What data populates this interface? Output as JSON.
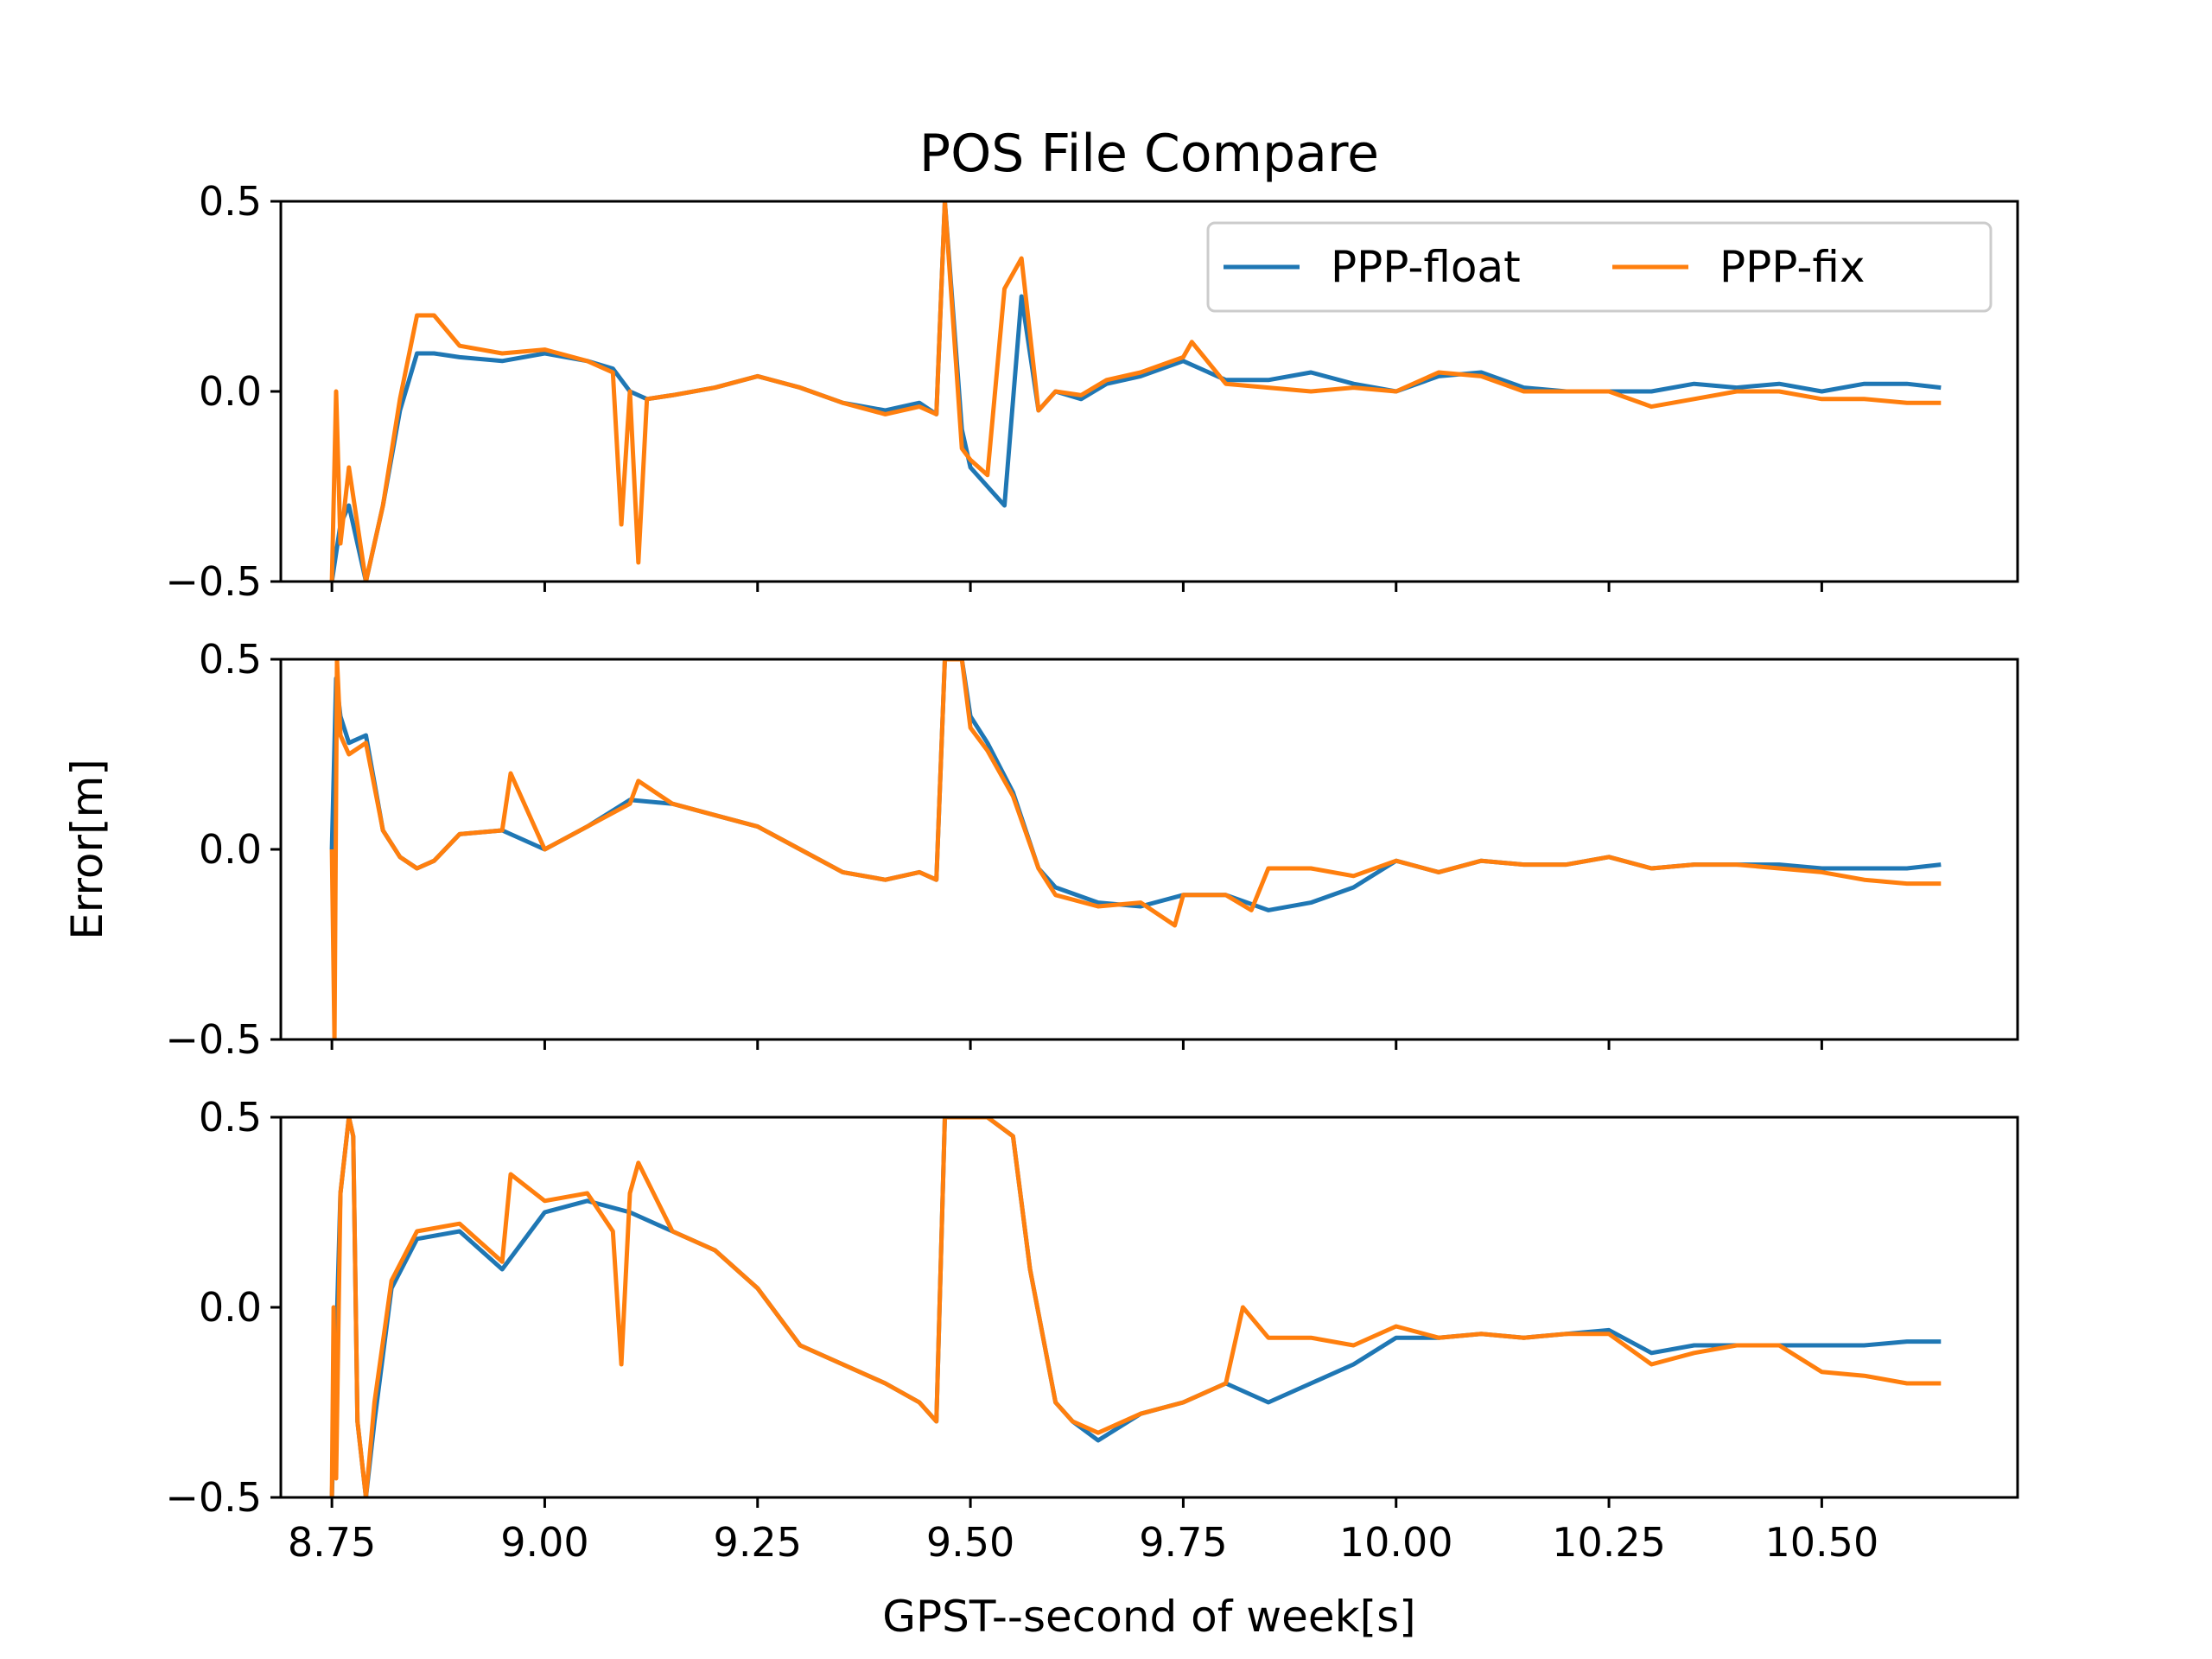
{
  "chart_data": {
    "type": "line",
    "title": "POS File Compare",
    "xlabel": "GPST--second of week[s]",
    "ylabel": "Error[m]",
    "xlim": [
      8.69,
      10.73
    ],
    "ylim": [
      -0.5,
      0.5
    ],
    "x_ticks": [
      "8.75",
      "9.00",
      "9.25",
      "9.50",
      "9.75",
      "10.00",
      "10.25",
      "10.50"
    ],
    "y_ticks": [
      "−0.5",
      "0.0",
      "0.5"
    ],
    "legend": {
      "placement": "top-right",
      "subplot": 0,
      "entries": [
        "PPP-float",
        "PPP-fix"
      ]
    },
    "colors": {
      "PPP-float": "#1f77b4",
      "PPP-fix": "#ff7f0e"
    },
    "subplots": [
      {
        "series": [
          {
            "name": "PPP-float",
            "x": [
              8.75,
              8.76,
              8.77,
              8.79,
              8.81,
              8.83,
              8.85,
              8.87,
              8.9,
              8.95,
              9.0,
              9.05,
              9.08,
              9.1,
              9.12,
              9.15,
              9.2,
              9.25,
              9.3,
              9.35,
              9.4,
              9.44,
              9.46,
              9.47,
              9.49,
              9.5,
              9.52,
              9.54,
              9.56,
              9.58,
              9.6,
              9.63,
              9.66,
              9.7,
              9.75,
              9.8,
              9.85,
              9.9,
              9.95,
              10.0,
              10.05,
              10.1,
              10.15,
              10.2,
              10.25,
              10.3,
              10.35,
              10.4,
              10.45,
              10.5,
              10.55,
              10.6,
              10.64
            ],
            "y": [
              -0.5,
              -0.35,
              -0.3,
              -0.5,
              -0.3,
              -0.05,
              0.1,
              0.1,
              0.09,
              0.08,
              0.1,
              0.08,
              0.06,
              0.0,
              -0.02,
              -0.01,
              0.01,
              0.04,
              0.01,
              -0.03,
              -0.05,
              -0.03,
              -0.06,
              0.5,
              -0.1,
              -0.2,
              -0.25,
              -0.3,
              0.25,
              -0.05,
              0.0,
              -0.02,
              0.02,
              0.04,
              0.08,
              0.03,
              0.03,
              0.05,
              0.02,
              0.0,
              0.04,
              0.05,
              0.01,
              0.0,
              0.0,
              0.0,
              0.02,
              0.01,
              0.02,
              0.0,
              0.02,
              0.02,
              0.01
            ]
          },
          {
            "name": "PPP-fix",
            "x": [
              8.75,
              8.755,
              8.76,
              8.77,
              8.79,
              8.81,
              8.83,
              8.85,
              8.87,
              8.9,
              8.95,
              9.0,
              9.05,
              9.08,
              9.09,
              9.1,
              9.11,
              9.12,
              9.15,
              9.2,
              9.25,
              9.3,
              9.35,
              9.4,
              9.44,
              9.46,
              9.47,
              9.49,
              9.5,
              9.52,
              9.54,
              9.56,
              9.58,
              9.6,
              9.63,
              9.66,
              9.7,
              9.75,
              9.76,
              9.8,
              9.85,
              9.9,
              9.95,
              10.0,
              10.05,
              10.1,
              10.15,
              10.2,
              10.25,
              10.3,
              10.35,
              10.4,
              10.45,
              10.5,
              10.55,
              10.6,
              10.64
            ],
            "y": [
              -0.5,
              0.0,
              -0.4,
              -0.2,
              -0.5,
              -0.3,
              -0.02,
              0.2,
              0.2,
              0.12,
              0.1,
              0.11,
              0.08,
              0.05,
              -0.35,
              0.0,
              -0.45,
              -0.02,
              -0.01,
              0.01,
              0.04,
              0.01,
              -0.03,
              -0.06,
              -0.04,
              -0.06,
              0.5,
              -0.15,
              -0.18,
              -0.22,
              0.27,
              0.35,
              -0.05,
              0.0,
              -0.01,
              0.03,
              0.05,
              0.09,
              0.13,
              0.02,
              0.01,
              0.0,
              0.01,
              0.0,
              0.05,
              0.04,
              0.0,
              0.0,
              0.0,
              -0.04,
              -0.02,
              0.0,
              0.0,
              -0.02,
              -0.02,
              -0.03,
              -0.03
            ]
          }
        ]
      },
      {
        "series": [
          {
            "name": "PPP-float",
            "x": [
              8.75,
              8.755,
              8.76,
              8.77,
              8.79,
              8.81,
              8.83,
              8.85,
              8.87,
              8.9,
              8.95,
              9.0,
              9.05,
              9.1,
              9.15,
              9.2,
              9.25,
              9.3,
              9.35,
              9.4,
              9.44,
              9.46,
              9.47,
              9.49,
              9.5,
              9.52,
              9.55,
              9.58,
              9.6,
              9.65,
              9.7,
              9.75,
              9.8,
              9.85,
              9.9,
              9.95,
              10.0,
              10.05,
              10.1,
              10.15,
              10.2,
              10.25,
              10.3,
              10.35,
              10.4,
              10.45,
              10.5,
              10.55,
              10.6,
              10.64
            ],
            "y": [
              0.0,
              0.45,
              0.35,
              0.28,
              0.3,
              0.05,
              -0.02,
              -0.05,
              -0.03,
              0.04,
              0.05,
              0.0,
              0.06,
              0.13,
              0.12,
              0.09,
              0.06,
              0.0,
              -0.06,
              -0.08,
              -0.06,
              -0.08,
              0.5,
              0.5,
              0.35,
              0.28,
              0.15,
              -0.05,
              -0.1,
              -0.14,
              -0.15,
              -0.12,
              -0.12,
              -0.16,
              -0.14,
              -0.1,
              -0.03,
              -0.06,
              -0.03,
              -0.04,
              -0.04,
              -0.02,
              -0.05,
              -0.04,
              -0.04,
              -0.04,
              -0.05,
              -0.05,
              -0.05,
              -0.04
            ]
          },
          {
            "name": "PPP-fix",
            "x": [
              8.75,
              8.753,
              8.756,
              8.76,
              8.77,
              8.79,
              8.81,
              8.83,
              8.85,
              8.87,
              8.9,
              8.95,
              8.96,
              9.0,
              9.05,
              9.1,
              9.11,
              9.15,
              9.2,
              9.25,
              9.3,
              9.35,
              9.4,
              9.44,
              9.46,
              9.47,
              9.49,
              9.5,
              9.52,
              9.55,
              9.58,
              9.6,
              9.65,
              9.7,
              9.74,
              9.75,
              9.8,
              9.83,
              9.85,
              9.9,
              9.95,
              10.0,
              10.05,
              10.1,
              10.15,
              10.2,
              10.25,
              10.3,
              10.35,
              10.4,
              10.45,
              10.5,
              10.55,
              10.6,
              10.64
            ],
            "y": [
              0.0,
              -0.5,
              0.5,
              0.3,
              0.25,
              0.28,
              0.05,
              -0.02,
              -0.05,
              -0.03,
              0.04,
              0.05,
              0.2,
              0.0,
              0.06,
              0.12,
              0.18,
              0.12,
              0.09,
              0.06,
              0.0,
              -0.06,
              -0.08,
              -0.06,
              -0.08,
              0.5,
              0.5,
              0.32,
              0.26,
              0.14,
              -0.05,
              -0.12,
              -0.15,
              -0.14,
              -0.2,
              -0.12,
              -0.12,
              -0.16,
              -0.05,
              -0.05,
              -0.07,
              -0.03,
              -0.06,
              -0.03,
              -0.04,
              -0.04,
              -0.02,
              -0.05,
              -0.04,
              -0.04,
              -0.05,
              -0.06,
              -0.08,
              -0.09,
              -0.09
            ]
          }
        ]
      },
      {
        "series": [
          {
            "name": "PPP-float",
            "x": [
              8.75,
              8.76,
              8.77,
              8.775,
              8.78,
              8.79,
              8.8,
              8.82,
              8.85,
              8.9,
              8.95,
              9.0,
              9.05,
              9.1,
              9.15,
              9.2,
              9.25,
              9.3,
              9.35,
              9.4,
              9.44,
              9.46,
              9.47,
              9.49,
              9.52,
              9.55,
              9.57,
              9.6,
              9.62,
              9.65,
              9.7,
              9.75,
              9.8,
              9.85,
              9.9,
              9.95,
              10.0,
              10.05,
              10.1,
              10.15,
              10.2,
              10.25,
              10.3,
              10.35,
              10.4,
              10.45,
              10.5,
              10.55,
              10.6,
              10.64
            ],
            "y": [
              -0.5,
              0.3,
              0.5,
              0.45,
              -0.3,
              -0.5,
              -0.3,
              0.05,
              0.18,
              0.2,
              0.1,
              0.25,
              0.28,
              0.25,
              0.2,
              0.15,
              0.05,
              -0.1,
              -0.15,
              -0.2,
              -0.25,
              -0.3,
              0.5,
              0.5,
              0.5,
              0.45,
              0.1,
              -0.25,
              -0.3,
              -0.35,
              -0.28,
              -0.25,
              -0.2,
              -0.25,
              -0.2,
              -0.15,
              -0.08,
              -0.08,
              -0.07,
              -0.08,
              -0.07,
              -0.06,
              -0.12,
              -0.1,
              -0.1,
              -0.1,
              -0.1,
              -0.1,
              -0.09,
              -0.09
            ]
          },
          {
            "name": "PPP-fix",
            "x": [
              8.75,
              8.752,
              8.755,
              8.76,
              8.77,
              8.775,
              8.78,
              8.79,
              8.8,
              8.82,
              8.85,
              8.9,
              8.95,
              8.96,
              9.0,
              9.05,
              9.08,
              9.09,
              9.1,
              9.11,
              9.15,
              9.2,
              9.25,
              9.3,
              9.35,
              9.4,
              9.44,
              9.46,
              9.47,
              9.49,
              9.52,
              9.55,
              9.57,
              9.6,
              9.62,
              9.65,
              9.7,
              9.75,
              9.8,
              9.82,
              9.85,
              9.9,
              9.95,
              10.0,
              10.05,
              10.1,
              10.15,
              10.2,
              10.25,
              10.3,
              10.35,
              10.4,
              10.45,
              10.5,
              10.55,
              10.6,
              10.64
            ],
            "y": [
              -0.5,
              0.0,
              -0.45,
              0.3,
              0.5,
              0.45,
              -0.3,
              -0.5,
              -0.25,
              0.07,
              0.2,
              0.22,
              0.12,
              0.35,
              0.28,
              0.3,
              0.2,
              -0.15,
              0.3,
              0.38,
              0.2,
              0.15,
              0.05,
              -0.1,
              -0.15,
              -0.2,
              -0.25,
              -0.3,
              0.5,
              0.5,
              0.5,
              0.45,
              0.1,
              -0.25,
              -0.3,
              -0.33,
              -0.28,
              -0.25,
              -0.2,
              0.0,
              -0.08,
              -0.08,
              -0.1,
              -0.05,
              -0.08,
              -0.07,
              -0.08,
              -0.07,
              -0.07,
              -0.15,
              -0.12,
              -0.1,
              -0.1,
              -0.17,
              -0.18,
              -0.2,
              -0.2
            ]
          }
        ]
      }
    ]
  }
}
